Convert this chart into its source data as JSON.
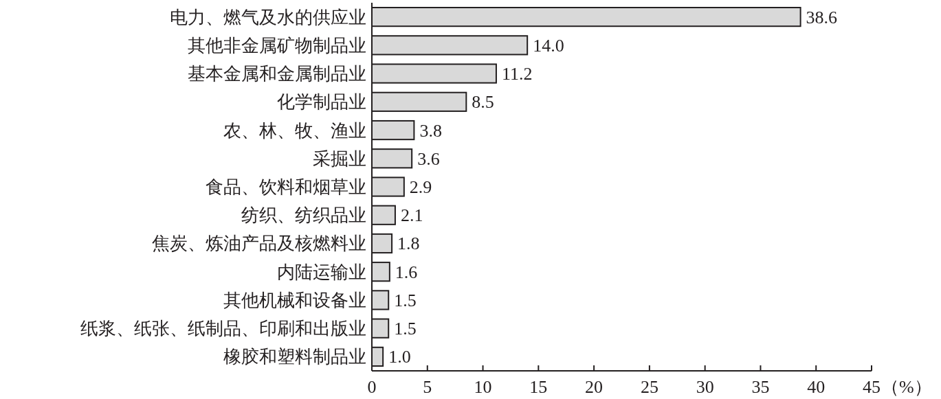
{
  "chart_data": {
    "type": "bar",
    "orientation": "horizontal",
    "xlabel": "（%）",
    "categories": [
      "电力、燃气及水的供应业",
      "其他非金属矿物制品业",
      "基本金属和金属制品业",
      "化学制品业",
      "农、林、牧、渔业",
      "采掘业",
      "食品、饮料和烟草业",
      "纺织、纺织品业",
      "焦炭、炼油产品及核燃料业",
      "内陆运输业",
      "其他机械和设备业",
      "纸浆、纸张、纸制品、印刷和出版业",
      "橡胶和塑料制品业"
    ],
    "values": [
      38.6,
      14.0,
      11.2,
      8.5,
      3.8,
      3.6,
      2.9,
      2.1,
      1.8,
      1.6,
      1.5,
      1.5,
      1.0
    ],
    "value_labels": [
      "38.6",
      "14.0",
      "11.2",
      "8.5",
      "3.8",
      "3.6",
      "2.9",
      "2.1",
      "1.8",
      "1.6",
      "1.5",
      "1.5",
      "1.0"
    ],
    "color": "#d9d9d9",
    "xlim": [
      0,
      45
    ],
    "xticks": [
      0,
      5,
      10,
      15,
      20,
      25,
      30,
      35,
      40,
      45
    ],
    "grid": false
  }
}
